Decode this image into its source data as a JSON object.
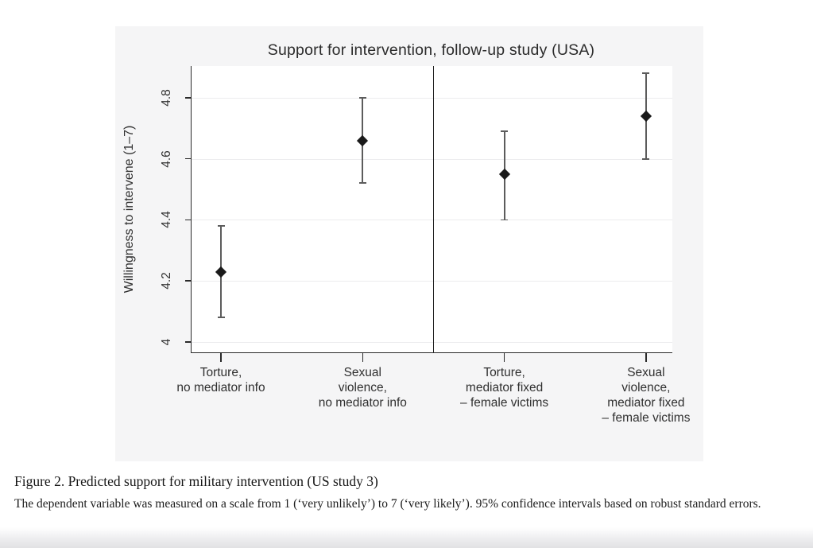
{
  "figure": {
    "title": "Support for intervention, follow-up study (USA)"
  },
  "chart_data": {
    "type": "scatter",
    "subtype": "point-estimates-with-95ci",
    "title": "Support for intervention, follow-up study (USA)",
    "xlabel": "",
    "ylabel": "Willingness to intervene (1–7)",
    "ylim": [
      3.966,
      4.904
    ],
    "yticks": [
      4,
      4.2,
      4.4,
      4.6,
      4.8
    ],
    "ytick_labels": [
      "4",
      "4.2",
      "4.4",
      "4.6",
      "4.8"
    ],
    "grid": true,
    "legend": "none",
    "panel_divider_between": [
      1,
      2
    ],
    "categories": [
      "Torture,\nno mediator info",
      "Sexual\nviolence,\nno mediator info",
      "Torture,\nmediator fixed\n– female victims",
      "Sexual\nviolence,\nmediator fixed\n– female victims"
    ],
    "points": [
      {
        "category": "Torture, no mediator info",
        "estimate": 4.23,
        "ci_low": 4.08,
        "ci_high": 4.38
      },
      {
        "category": "Sexual violence, no mediator info",
        "estimate": 4.66,
        "ci_low": 4.52,
        "ci_high": 4.8
      },
      {
        "category": "Torture, mediator fixed – female victims",
        "estimate": 4.55,
        "ci_low": 4.4,
        "ci_high": 4.69
      },
      {
        "category": "Sexual violence, mediator fixed – female victims",
        "estimate": 4.74,
        "ci_low": 4.6,
        "ci_high": 4.88
      }
    ]
  },
  "caption": {
    "title": "Figure 2. Predicted support for military intervention (US study 3)",
    "body": "The dependent variable was measured on a scale from 1 (‘very unlikely’) to 7 (‘very likely’). 95% confidence intervals based on robust standard errors."
  },
  "colors": {
    "figure_background": "#f5f5f6",
    "plot_background": "#ffffff",
    "gridline": "#ececee",
    "axis": "#2a2a2a",
    "marker": "#1a1a1a",
    "ci_whisker": "#5c5c5c"
  }
}
